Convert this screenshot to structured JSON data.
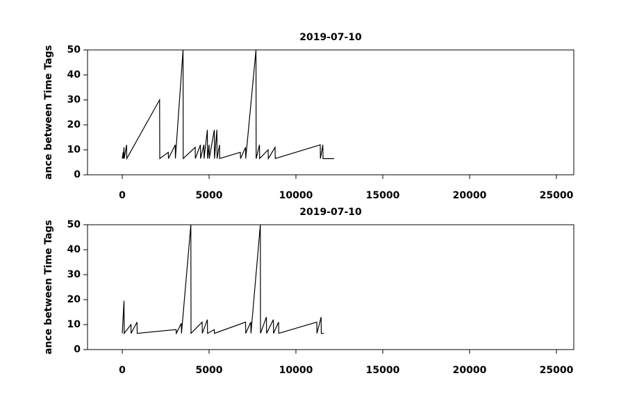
{
  "chart_data": [
    {
      "type": "line",
      "title": "2019-07-10",
      "y_label": "ance between Time Tags",
      "xlim": [
        -2000,
        26000
      ],
      "xticks": [
        0,
        5000,
        10000,
        15000,
        20000,
        25000
      ],
      "ylim": [
        0,
        50
      ],
      "yticks": [
        0,
        10,
        20,
        30,
        40,
        50
      ],
      "series": [
        {
          "color": "#000000",
          "x": [
            0,
            50,
            60,
            100,
            110,
            250,
            260,
            2150,
            2160,
            2650,
            2660,
            3050,
            3060,
            3500,
            3510,
            4200,
            4210,
            4500,
            4510,
            4700,
            4710,
            4900,
            4910,
            5000,
            5010,
            5300,
            5310,
            5450,
            5460,
            5600,
            5610,
            6800,
            6810,
            7100,
            7110,
            7700,
            7710,
            7900,
            7910,
            8400,
            8410,
            8800,
            8810,
            11400,
            11410,
            11550,
            11560,
            12200
          ],
          "values": [
            6.5,
            9,
            6.5,
            11,
            6.5,
            12,
            6.5,
            30,
            6.5,
            9,
            6.5,
            12,
            6.5,
            50,
            6.5,
            11,
            6.5,
            12,
            6.5,
            12,
            6.5,
            18,
            6.5,
            12,
            6.5,
            18,
            6.5,
            18,
            6.5,
            12,
            6.5,
            9,
            6.5,
            11,
            6.5,
            50,
            6.5,
            12,
            6.5,
            10,
            6.5,
            11,
            6.5,
            12,
            6.5,
            12,
            6.5,
            6.5
          ]
        }
      ]
    },
    {
      "type": "line",
      "title": "2019-07-10",
      "y_label": "ance between Time Tags",
      "xlim": [
        -2000,
        26000
      ],
      "xticks": [
        0,
        5000,
        10000,
        15000,
        20000,
        25000
      ],
      "ylim": [
        0,
        50
      ],
      "yticks": [
        0,
        10,
        20,
        30,
        40,
        50
      ],
      "series": [
        {
          "color": "#000000",
          "x": [
            0,
            100,
            110,
            500,
            510,
            850,
            860,
            3100,
            3110,
            3400,
            3410,
            3950,
            3960,
            4600,
            4610,
            4900,
            4910,
            5300,
            5310,
            7100,
            7110,
            7400,
            7410,
            7950,
            7960,
            8300,
            8310,
            8700,
            8710,
            9000,
            9010,
            11200,
            11210,
            11450,
            11460,
            11600
          ],
          "values": [
            6.5,
            19.5,
            6.5,
            10,
            6.5,
            11,
            6.5,
            8,
            6.5,
            10.5,
            6.5,
            50,
            6.5,
            11,
            6.5,
            12,
            6.5,
            8,
            6.5,
            11,
            6.5,
            11,
            6.5,
            50,
            6.5,
            13,
            6.5,
            12,
            6.5,
            11,
            6.5,
            11,
            6.5,
            13,
            6.5,
            6.5
          ]
        }
      ]
    }
  ]
}
